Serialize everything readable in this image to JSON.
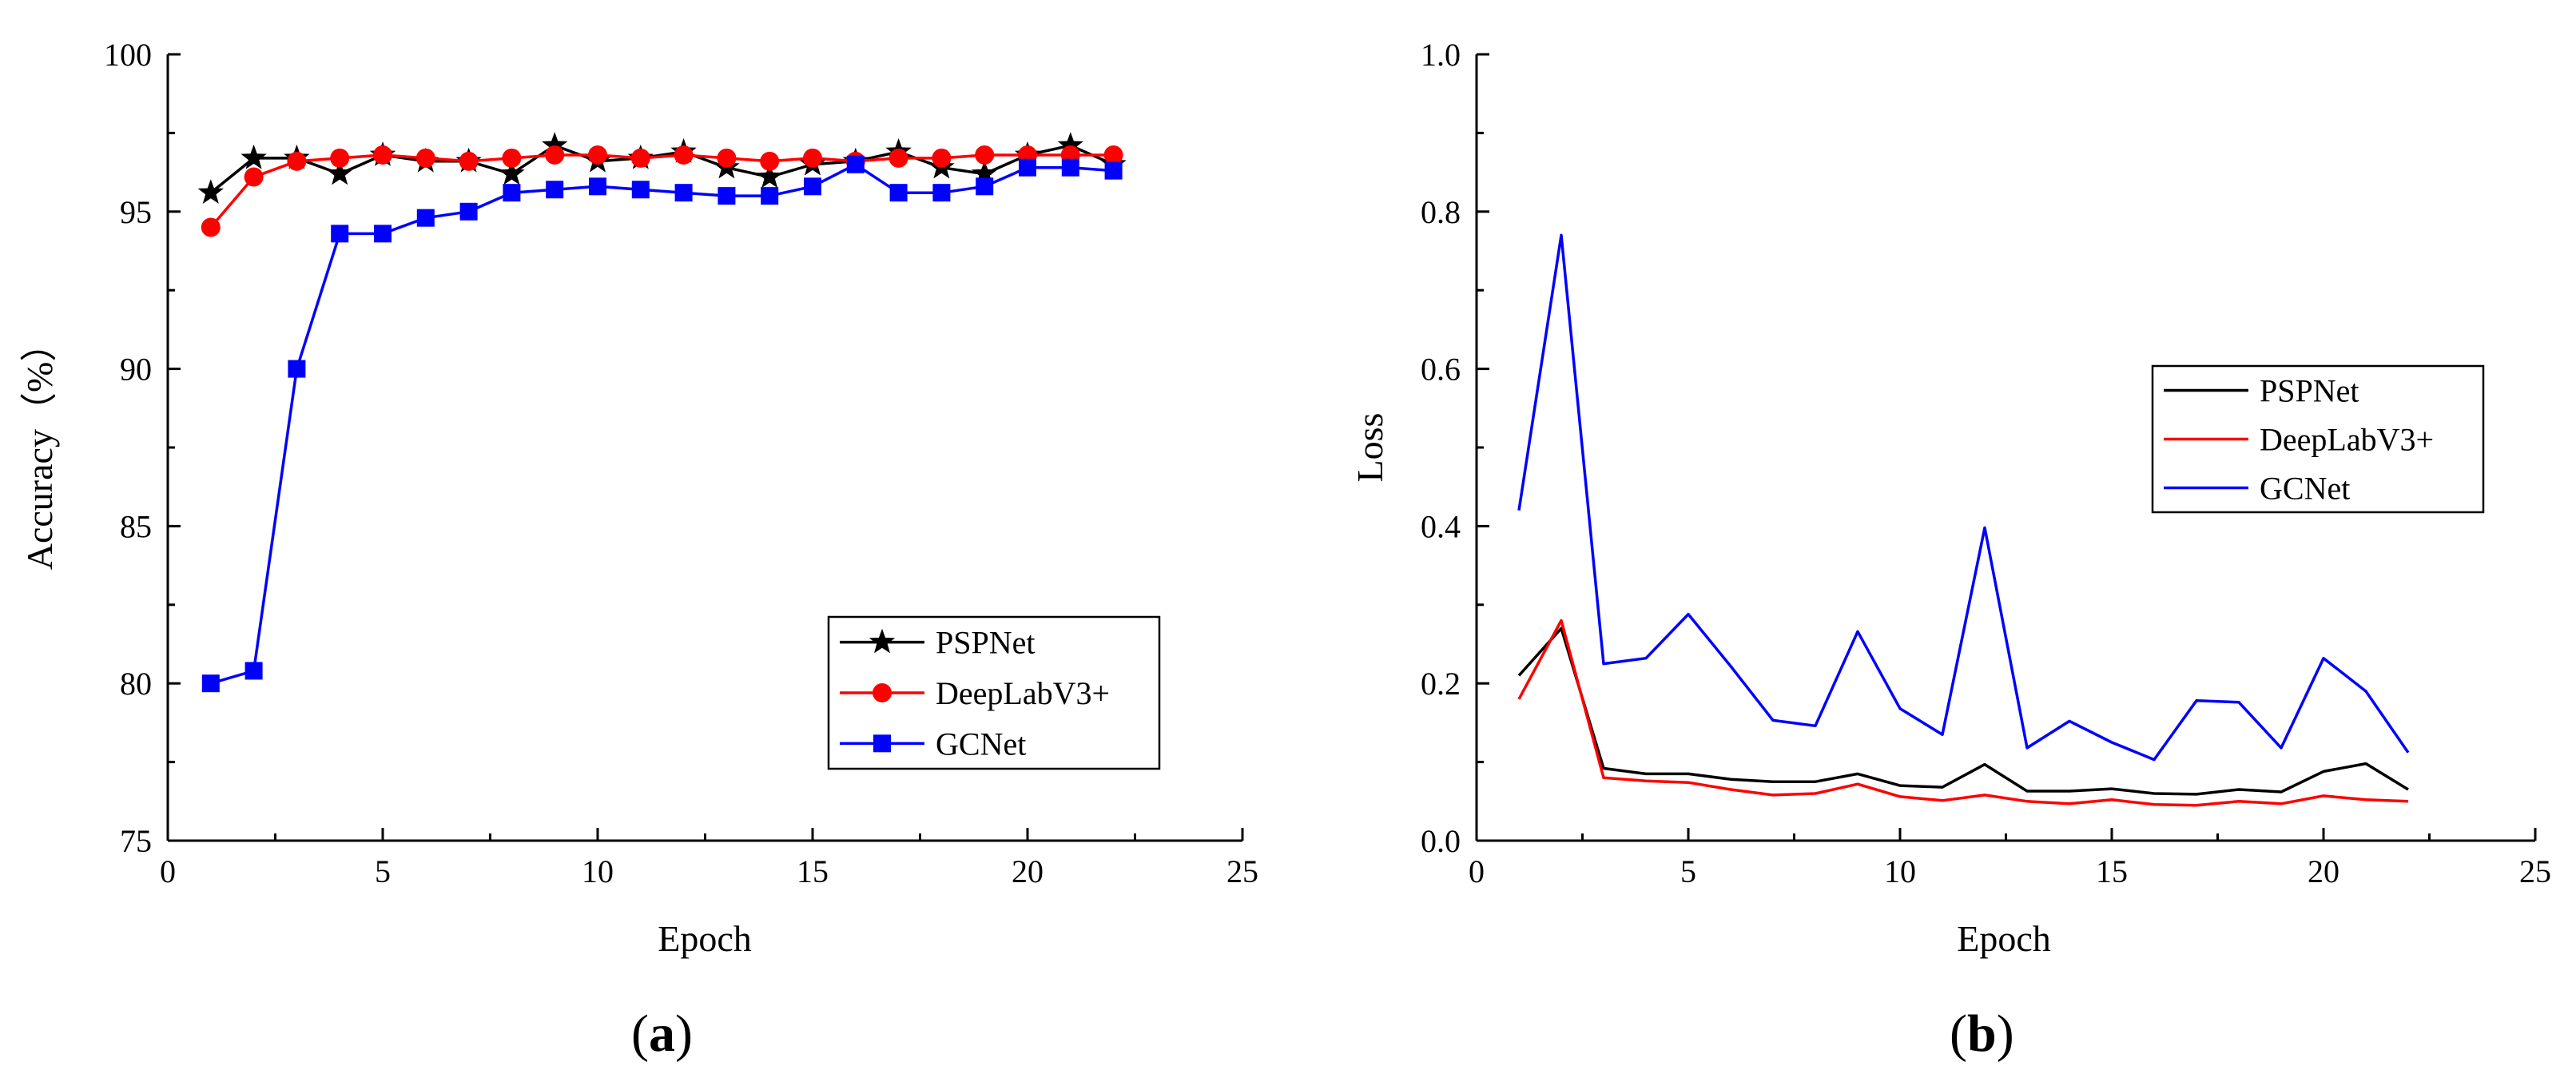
{
  "chart_data": [
    {
      "type": "line",
      "panel_label_open": "(",
      "panel_label_letter": "a",
      "panel_label_close": ")",
      "xlabel": "Epoch",
      "ylabel": "Accuracy（%）",
      "xlim": [
        0,
        25
      ],
      "ylim": [
        75,
        100
      ],
      "xticks": [
        0,
        5,
        10,
        15,
        20,
        25
      ],
      "yticks": [
        75,
        80,
        85,
        90,
        95,
        100
      ],
      "legend_position": "lower-right",
      "x": [
        1,
        2,
        3,
        4,
        5,
        6,
        7,
        8,
        9,
        10,
        11,
        12,
        13,
        14,
        15,
        16,
        17,
        18,
        19,
        20,
        21,
        22
      ],
      "series": [
        {
          "name": "PSPNet",
          "color": "#000000",
          "marker": "star",
          "values": [
            95.6,
            96.7,
            96.7,
            96.2,
            96.8,
            96.6,
            96.6,
            96.2,
            97.1,
            96.6,
            96.7,
            96.9,
            96.4,
            96.1,
            96.5,
            96.6,
            96.9,
            96.4,
            96.2,
            96.8,
            97.1,
            96.5
          ]
        },
        {
          "name": "DeepLabV3+",
          "color": "#ff0000",
          "marker": "circle",
          "values": [
            94.5,
            96.1,
            96.6,
            96.7,
            96.8,
            96.7,
            96.6,
            96.7,
            96.8,
            96.8,
            96.7,
            96.8,
            96.7,
            96.6,
            96.7,
            96.6,
            96.7,
            96.7,
            96.8,
            96.8,
            96.8,
            96.8
          ]
        },
        {
          "name": "GCNet",
          "color": "#0000ff",
          "marker": "square",
          "values": [
            80.0,
            80.4,
            90.0,
            94.3,
            94.3,
            94.8,
            95.0,
            95.6,
            95.7,
            95.8,
            95.7,
            95.6,
            95.5,
            95.5,
            95.8,
            96.5,
            95.6,
            95.6,
            95.8,
            96.4,
            96.4,
            96.3
          ]
        }
      ]
    },
    {
      "type": "line",
      "panel_label_open": "(",
      "panel_label_letter": "b",
      "panel_label_close": ")",
      "xlabel": "Epoch",
      "ylabel": "Loss",
      "xlim": [
        0,
        25
      ],
      "ylim": [
        0.0,
        1.0
      ],
      "xticks": [
        0,
        5,
        10,
        15,
        20,
        25
      ],
      "yticks": [
        "0.0",
        "0.2",
        "0.4",
        "0.6",
        "0.8",
        "1.0"
      ],
      "legend_position": "center-right",
      "x": [
        1,
        2,
        3,
        4,
        5,
        6,
        7,
        8,
        9,
        10,
        11,
        12,
        13,
        14,
        15,
        16,
        17,
        18,
        19,
        20,
        21,
        22
      ],
      "series": [
        {
          "name": "PSPNet",
          "color": "#000000",
          "marker": "none",
          "values": [
            0.21,
            0.27,
            0.092,
            0.085,
            0.085,
            0.078,
            0.075,
            0.075,
            0.085,
            0.07,
            0.068,
            0.097,
            0.063,
            0.063,
            0.066,
            0.06,
            0.059,
            0.065,
            0.062,
            0.088,
            0.098,
            0.065
          ]
        },
        {
          "name": "DeepLabV3+",
          "color": "#ff0000",
          "marker": "none",
          "values": [
            0.18,
            0.28,
            0.08,
            0.076,
            0.074,
            0.065,
            0.058,
            0.06,
            0.072,
            0.056,
            0.051,
            0.058,
            0.05,
            0.047,
            0.052,
            0.046,
            0.045,
            0.05,
            0.047,
            0.057,
            0.052,
            0.05
          ]
        },
        {
          "name": "GCNet",
          "color": "#0000ff",
          "marker": "none",
          "values": [
            0.42,
            0.77,
            0.225,
            0.232,
            0.288,
            0.222,
            0.153,
            0.146,
            0.266,
            0.168,
            0.135,
            0.398,
            0.118,
            0.152,
            0.125,
            0.103,
            0.178,
            0.176,
            0.118,
            0.232,
            0.19,
            0.112
          ]
        }
      ]
    }
  ]
}
